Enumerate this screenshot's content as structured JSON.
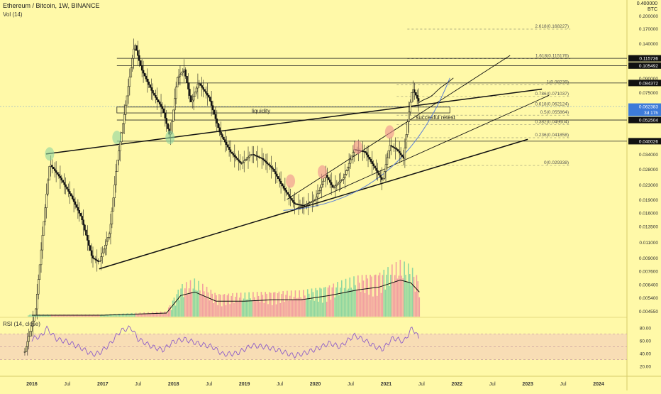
{
  "header": {
    "symbol_line": "Ethereum / Bitcoin, 1W, BINANCE",
    "volume_label": "Vol (14)",
    "currency_top": "0.400000",
    "currency_unit": "BTC"
  },
  "rsi": {
    "label": "RSI (14, close)",
    "axis_ticks": [
      "80.00",
      "60.00",
      "40.00",
      "20.00"
    ]
  },
  "annotations": {
    "liquidity": "liquidity",
    "retest": "succesful retest"
  },
  "colors": {
    "background": "#fff9a8",
    "up_candle": "#1a1a1a",
    "volume_up": "#8fd6a0",
    "volume_down": "#f2a0a0",
    "rsi_line": "#8e5ec8",
    "rsi_band": "#f3c6c0",
    "curve": "#5b7fd6",
    "price_tag_blue": "#3d7bd9"
  },
  "chart_data": {
    "type": "candlestick",
    "title": "Ethereum / Bitcoin, 1W, BINANCE",
    "y_scale": "log",
    "y_axis_ticks": [
      0.2,
      0.17,
      0.14,
      0.09,
      0.075,
      0.062,
      0.052,
      0.04,
      0.034,
      0.028,
      0.023,
      0.019,
      0.016,
      0.0135,
      0.011,
      0.009,
      0.0076,
      0.0064,
      0.0054,
      0.00455
    ],
    "y_axis_labels": [
      "0.200000",
      "0.170000",
      "0.140000",
      "0.090000",
      "0.075000",
      "0.062000",
      "0.052000",
      "0.040000",
      "0.034000",
      "0.028000",
      "0.023000",
      "0.019000",
      "0.016000",
      "0.013500",
      "0.011000",
      "0.009000",
      "0.007600",
      "0.006400",
      "0.005400",
      "0.004550"
    ],
    "x_axis_labels": [
      "2016",
      "Jul",
      "2017",
      "Jul",
      "2018",
      "Jul",
      "2019",
      "Jul",
      "2020",
      "Jul",
      "2021",
      "Jul",
      "2022",
      "Jul",
      "2023",
      "Jul",
      "2024"
    ],
    "price_path": [
      {
        "t": 2015.9,
        "p": 0.0027
      },
      {
        "t": 2016.05,
        "p": 0.0045
      },
      {
        "t": 2016.15,
        "p": 0.012
      },
      {
        "t": 2016.25,
        "p": 0.03
      },
      {
        "t": 2016.4,
        "p": 0.025
      },
      {
        "t": 2016.55,
        "p": 0.02
      },
      {
        "t": 2016.7,
        "p": 0.015
      },
      {
        "t": 2016.85,
        "p": 0.009
      },
      {
        "t": 2016.95,
        "p": 0.0085
      },
      {
        "t": 2017.1,
        "p": 0.0125
      },
      {
        "t": 2017.2,
        "p": 0.03
      },
      {
        "t": 2017.3,
        "p": 0.055
      },
      {
        "t": 2017.45,
        "p": 0.14
      },
      {
        "t": 2017.55,
        "p": 0.1
      },
      {
        "t": 2017.7,
        "p": 0.075
      },
      {
        "t": 2017.85,
        "p": 0.06
      },
      {
        "t": 2017.95,
        "p": 0.042
      },
      {
        "t": 2018.05,
        "p": 0.09
      },
      {
        "t": 2018.15,
        "p": 0.1
      },
      {
        "t": 2018.25,
        "p": 0.065
      },
      {
        "t": 2018.35,
        "p": 0.085
      },
      {
        "t": 2018.5,
        "p": 0.07
      },
      {
        "t": 2018.65,
        "p": 0.045
      },
      {
        "t": 2018.8,
        "p": 0.035
      },
      {
        "t": 2018.95,
        "p": 0.03
      },
      {
        "t": 2019.1,
        "p": 0.034
      },
      {
        "t": 2019.25,
        "p": 0.032
      },
      {
        "t": 2019.4,
        "p": 0.028
      },
      {
        "t": 2019.55,
        "p": 0.022
      },
      {
        "t": 2019.7,
        "p": 0.018
      },
      {
        "t": 2019.85,
        "p": 0.0175
      },
      {
        "t": 2020.0,
        "p": 0.019
      },
      {
        "t": 2020.15,
        "p": 0.026
      },
      {
        "t": 2020.25,
        "p": 0.022
      },
      {
        "t": 2020.4,
        "p": 0.025
      },
      {
        "t": 2020.55,
        "p": 0.036
      },
      {
        "t": 2020.7,
        "p": 0.035
      },
      {
        "t": 2020.85,
        "p": 0.028
      },
      {
        "t": 2020.95,
        "p": 0.024
      },
      {
        "t": 2021.05,
        "p": 0.038
      },
      {
        "t": 2021.15,
        "p": 0.036
      },
      {
        "t": 2021.25,
        "p": 0.032
      },
      {
        "t": 2021.3,
        "p": 0.05
      },
      {
        "t": 2021.37,
        "p": 0.079
      },
      {
        "t": 2021.42,
        "p": 0.072
      },
      {
        "t": 2021.47,
        "p": 0.065
      }
    ],
    "price_lines": [
      {
        "value": 0.115736,
        "label": "0.115736"
      },
      {
        "value": 0.105492,
        "label": "0.105492"
      },
      {
        "value": 0.084372,
        "label": "0.084372"
      },
      {
        "value": 0.062383,
        "label": "0.062383",
        "sublabel": "3d 17h"
      },
      {
        "value": 0.052504,
        "label": "0.052504"
      },
      {
        "value": 0.040026,
        "label": "0.040026"
      }
    ],
    "fibonacci": [
      {
        "ratio": "2.618",
        "value": 0.168227,
        "label": "2.618(0.168227)"
      },
      {
        "ratio": "1.618",
        "value": 0.115176,
        "label": "1.618(0.115176)"
      },
      {
        "ratio": "1",
        "value": 0.08239,
        "label": "1(0.08239)"
      },
      {
        "ratio": "0.786",
        "value": 0.071037,
        "label": "0.786(0.071037)"
      },
      {
        "ratio": "0.618",
        "value": 0.062124,
        "label": "0.618(0.062124)"
      },
      {
        "ratio": "0.5",
        "value": 0.055864,
        "label": "0.5(0.055864)"
      },
      {
        "ratio": "0.382",
        "value": 0.049604,
        "label": "0.382(0.049604)"
      },
      {
        "ratio": "0.236",
        "value": 0.041858,
        "label": "0.236(0.041858)"
      },
      {
        "ratio": "0",
        "value": 0.029338,
        "label": "0(0.029338)"
      }
    ],
    "volume_path": [
      {
        "t": 2016.0,
        "v": 0.02
      },
      {
        "t": 2017.0,
        "v": 0.02
      },
      {
        "t": 2017.9,
        "v": 0.05
      },
      {
        "t": 2018.1,
        "v": 0.3
      },
      {
        "t": 2018.3,
        "v": 0.35
      },
      {
        "t": 2018.6,
        "v": 0.22
      },
      {
        "t": 2019.0,
        "v": 0.22
      },
      {
        "t": 2019.4,
        "v": 0.24
      },
      {
        "t": 2019.8,
        "v": 0.24
      },
      {
        "t": 2020.2,
        "v": 0.3
      },
      {
        "t": 2020.6,
        "v": 0.38
      },
      {
        "t": 2020.9,
        "v": 0.42
      },
      {
        "t": 2021.2,
        "v": 0.52
      },
      {
        "t": 2021.35,
        "v": 0.48
      },
      {
        "t": 2021.47,
        "v": 0.35
      }
    ],
    "rsi_path": [
      {
        "t": 2016.0,
        "v": 62
      },
      {
        "t": 2016.15,
        "v": 68
      },
      {
        "t": 2016.2,
        "v": 80
      },
      {
        "t": 2016.35,
        "v": 62
      },
      {
        "t": 2016.5,
        "v": 58
      },
      {
        "t": 2016.7,
        "v": 48
      },
      {
        "t": 2016.85,
        "v": 38
      },
      {
        "t": 2016.95,
        "v": 40
      },
      {
        "t": 2017.1,
        "v": 54
      },
      {
        "t": 2017.25,
        "v": 75
      },
      {
        "t": 2017.4,
        "v": 80
      },
      {
        "t": 2017.5,
        "v": 62
      },
      {
        "t": 2017.7,
        "v": 50
      },
      {
        "t": 2017.85,
        "v": 45
      },
      {
        "t": 2018.0,
        "v": 58
      },
      {
        "t": 2018.15,
        "v": 62
      },
      {
        "t": 2018.35,
        "v": 55
      },
      {
        "t": 2018.55,
        "v": 50
      },
      {
        "t": 2018.7,
        "v": 38
      },
      {
        "t": 2018.9,
        "v": 40
      },
      {
        "t": 2019.1,
        "v": 52
      },
      {
        "t": 2019.3,
        "v": 50
      },
      {
        "t": 2019.5,
        "v": 44
      },
      {
        "t": 2019.7,
        "v": 36
      },
      {
        "t": 2019.85,
        "v": 40
      },
      {
        "t": 2020.05,
        "v": 48
      },
      {
        "t": 2020.2,
        "v": 56
      },
      {
        "t": 2020.35,
        "v": 50
      },
      {
        "t": 2020.55,
        "v": 68
      },
      {
        "t": 2020.7,
        "v": 60
      },
      {
        "t": 2020.85,
        "v": 50
      },
      {
        "t": 2020.95,
        "v": 46
      },
      {
        "t": 2021.1,
        "v": 64
      },
      {
        "t": 2021.25,
        "v": 58
      },
      {
        "t": 2021.37,
        "v": 80
      },
      {
        "t": 2021.47,
        "v": 62
      }
    ],
    "trendlines": [
      {
        "name": "support-main",
        "from": {
          "t": 2016.95,
          "p": 0.0078
        },
        "to": {
          "t": 2023.0,
          "p": 0.041
        }
      },
      {
        "name": "resistance-upper",
        "from": {
          "t": 2016.2,
          "p": 0.034
        },
        "to": {
          "t": 2023.2,
          "p": 0.078
        }
      },
      {
        "name": "channel-lower",
        "from": {
          "t": 2019.6,
          "p": 0.016
        },
        "to": {
          "t": 2023.3,
          "p": 0.072
        }
      },
      {
        "name": "channel-upper",
        "from": {
          "t": 2019.6,
          "p": 0.019
        },
        "to": {
          "t": 2022.75,
          "p": 0.12
        }
      }
    ]
  }
}
